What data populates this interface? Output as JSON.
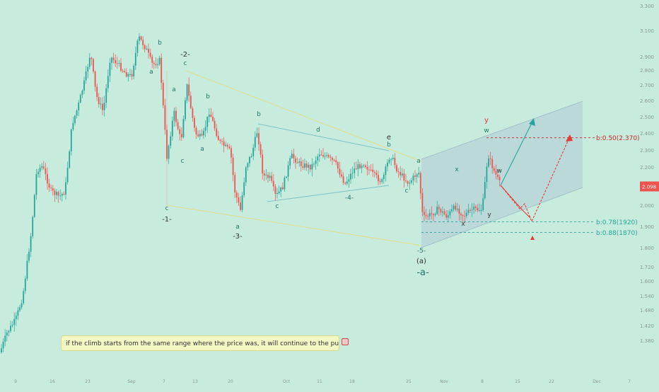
{
  "chart_data": {
    "type": "candlestick",
    "price_axis": {
      "ticks": [
        "3.300",
        "3.100",
        "2.900",
        "2.800",
        "2.700",
        "2.600",
        "2.500",
        "2.400",
        "2.300",
        "2.200",
        "2.100",
        "2.000",
        "1.900",
        "1.800",
        "1.720",
        "1.600",
        "1.540",
        "1.480",
        "1.420",
        "1.380"
      ],
      "current_price": "2.098",
      "scale": "log"
    },
    "time_axis": {
      "labels": [
        "9",
        "16",
        "23",
        "Sep",
        "7",
        "13",
        "20",
        "Oct",
        "11",
        "18",
        "25",
        "Nov",
        "8",
        "15",
        "22",
        "Dec",
        "7"
      ]
    },
    "wave_labels": [
      "a",
      "b",
      "-2-",
      "c",
      "a",
      "b",
      "a",
      "c",
      "-1-",
      "c",
      "-3-",
      "a",
      "b",
      "c",
      "d",
      "-4-",
      "e",
      "b",
      "a",
      "c",
      "-5-",
      "(a)",
      "-a-",
      "y",
      "w",
      "x",
      "x",
      "w",
      "y"
    ],
    "levels": [
      {
        "label": "b:0.50(2.370)",
        "price": 2.37,
        "color": "#c62828"
      },
      {
        "label": "b:0.78(1920)",
        "price": 1.92,
        "color": "#26a69a"
      },
      {
        "label": "b:0.88(1870)",
        "price": 1.87,
        "color": "#26a69a"
      }
    ],
    "note": "if the climb starts from the same range where the price was, it will continue to the purple channel ceiling",
    "colors": {
      "up": "#26a69a",
      "down": "#ef5350",
      "background": "#c7ebdd",
      "projection_red": "#e53935",
      "projection_teal": "#26a69a",
      "price_tag": "#ef5350"
    }
  }
}
